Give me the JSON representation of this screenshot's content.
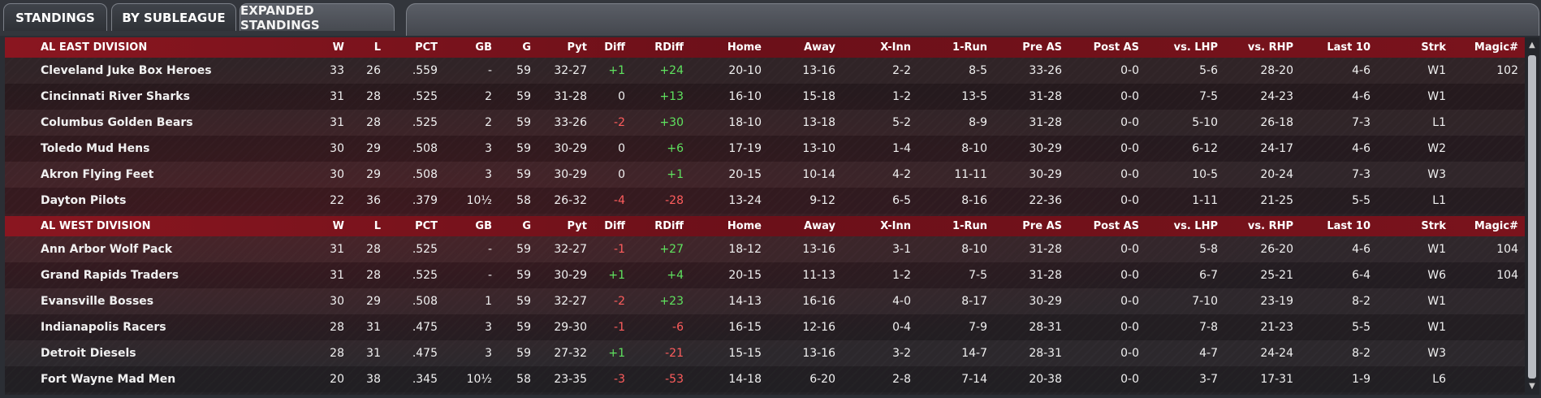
{
  "tabs": [
    "STANDINGS",
    "BY SUBLEAGUE",
    "EXPANDED STANDINGS"
  ],
  "active_tab": "EXPANDED STANDINGS",
  "columns": [
    "W",
    "L",
    "PCT",
    "GB",
    "G",
    "Pyt",
    "Diff",
    "RDiff",
    "Home",
    "Away",
    "X-Inn",
    "1-Run",
    "Pre AS",
    "Post AS",
    "vs. LHP",
    "vs. RHP",
    "Last 10",
    "Strk",
    "Magic#"
  ],
  "colors": {
    "positive": "#5fe35f",
    "negative": "#ff5d5d",
    "header": "#8a1620"
  },
  "divisions": [
    {
      "name": "AL EAST DIVISION",
      "teams": [
        {
          "name": "Cleveland Juke Box Heroes",
          "W": "33",
          "L": "26",
          "PCT": ".559",
          "GB": "-",
          "G": "59",
          "Pyt": "32-27",
          "Diff": "+1",
          "RDiff": "+24",
          "Home": "20-10",
          "Away": "13-16",
          "XInn": "2-2",
          "OneRun": "8-5",
          "PreAS": "33-26",
          "PostAS": "0-0",
          "vsLHP": "5-6",
          "vsRHP": "28-20",
          "Last10": "4-6",
          "Strk": "W1",
          "Magic": "102"
        },
        {
          "name": "Cincinnati River Sharks",
          "W": "31",
          "L": "28",
          "PCT": ".525",
          "GB": "2",
          "G": "59",
          "Pyt": "31-28",
          "Diff": "0",
          "RDiff": "+13",
          "Home": "16-10",
          "Away": "15-18",
          "XInn": "1-2",
          "OneRun": "13-5",
          "PreAS": "31-28",
          "PostAS": "0-0",
          "vsLHP": "7-5",
          "vsRHP": "24-23",
          "Last10": "4-6",
          "Strk": "W1",
          "Magic": ""
        },
        {
          "name": "Columbus Golden Bears",
          "W": "31",
          "L": "28",
          "PCT": ".525",
          "GB": "2",
          "G": "59",
          "Pyt": "33-26",
          "Diff": "-2",
          "RDiff": "+30",
          "Home": "18-10",
          "Away": "13-18",
          "XInn": "5-2",
          "OneRun": "8-9",
          "PreAS": "31-28",
          "PostAS": "0-0",
          "vsLHP": "5-10",
          "vsRHP": "26-18",
          "Last10": "7-3",
          "Strk": "L1",
          "Magic": ""
        },
        {
          "name": "Toledo  Mud Hens",
          "W": "30",
          "L": "29",
          "PCT": ".508",
          "GB": "3",
          "G": "59",
          "Pyt": "30-29",
          "Diff": "0",
          "RDiff": "+6",
          "Home": "17-19",
          "Away": "13-10",
          "XInn": "1-4",
          "OneRun": "8-10",
          "PreAS": "30-29",
          "PostAS": "0-0",
          "vsLHP": "6-12",
          "vsRHP": "24-17",
          "Last10": "4-6",
          "Strk": "W2",
          "Magic": ""
        },
        {
          "name": "Akron  Flying Feet",
          "W": "30",
          "L": "29",
          "PCT": ".508",
          "GB": "3",
          "G": "59",
          "Pyt": "30-29",
          "Diff": "0",
          "RDiff": "+1",
          "Home": "20-15",
          "Away": "10-14",
          "XInn": "4-2",
          "OneRun": "11-11",
          "PreAS": "30-29",
          "PostAS": "0-0",
          "vsLHP": "10-5",
          "vsRHP": "20-24",
          "Last10": "7-3",
          "Strk": "W3",
          "Magic": ""
        },
        {
          "name": "Dayton Pilots",
          "W": "22",
          "L": "36",
          "PCT": ".379",
          "GB": "10½",
          "G": "58",
          "Pyt": "26-32",
          "Diff": "-4",
          "RDiff": "-28",
          "Home": "13-24",
          "Away": "9-12",
          "XInn": "6-5",
          "OneRun": "8-16",
          "PreAS": "22-36",
          "PostAS": "0-0",
          "vsLHP": "1-11",
          "vsRHP": "21-25",
          "Last10": "5-5",
          "Strk": "L1",
          "Magic": ""
        }
      ]
    },
    {
      "name": "AL WEST DIVISION",
      "teams": [
        {
          "name": "Ann Arbor Wolf Pack",
          "W": "31",
          "L": "28",
          "PCT": ".525",
          "GB": "-",
          "G": "59",
          "Pyt": "32-27",
          "Diff": "-1",
          "RDiff": "+27",
          "Home": "18-12",
          "Away": "13-16",
          "XInn": "3-1",
          "OneRun": "8-10",
          "PreAS": "31-28",
          "PostAS": "0-0",
          "vsLHP": "5-8",
          "vsRHP": "26-20",
          "Last10": "4-6",
          "Strk": "W1",
          "Magic": "104"
        },
        {
          "name": "Grand Rapids Traders",
          "W": "31",
          "L": "28",
          "PCT": ".525",
          "GB": "-",
          "G": "59",
          "Pyt": "30-29",
          "Diff": "+1",
          "RDiff": "+4",
          "Home": "20-15",
          "Away": "11-13",
          "XInn": "1-2",
          "OneRun": "7-5",
          "PreAS": "31-28",
          "PostAS": "0-0",
          "vsLHP": "6-7",
          "vsRHP": "25-21",
          "Last10": "6-4",
          "Strk": "W6",
          "Magic": "104"
        },
        {
          "name": "Evansville Bosses",
          "W": "30",
          "L": "29",
          "PCT": ".508",
          "GB": "1",
          "G": "59",
          "Pyt": "32-27",
          "Diff": "-2",
          "RDiff": "+23",
          "Home": "14-13",
          "Away": "16-16",
          "XInn": "4-0",
          "OneRun": "8-17",
          "PreAS": "30-29",
          "PostAS": "0-0",
          "vsLHP": "7-10",
          "vsRHP": "23-19",
          "Last10": "8-2",
          "Strk": "W1",
          "Magic": ""
        },
        {
          "name": "Indianapolis Racers",
          "W": "28",
          "L": "31",
          "PCT": ".475",
          "GB": "3",
          "G": "59",
          "Pyt": "29-30",
          "Diff": "-1",
          "RDiff": "-6",
          "Home": "16-15",
          "Away": "12-16",
          "XInn": "0-4",
          "OneRun": "7-9",
          "PreAS": "28-31",
          "PostAS": "0-0",
          "vsLHP": "7-8",
          "vsRHP": "21-23",
          "Last10": "5-5",
          "Strk": "W1",
          "Magic": ""
        },
        {
          "name": "Detroit Diesels",
          "W": "28",
          "L": "31",
          "PCT": ".475",
          "GB": "3",
          "G": "59",
          "Pyt": "27-32",
          "Diff": "+1",
          "RDiff": "-21",
          "Home": "15-15",
          "Away": "13-16",
          "XInn": "3-2",
          "OneRun": "14-7",
          "PreAS": "28-31",
          "PostAS": "0-0",
          "vsLHP": "4-7",
          "vsRHP": "24-24",
          "Last10": "8-2",
          "Strk": "W3",
          "Magic": ""
        },
        {
          "name": "Fort Wayne Mad Men",
          "W": "20",
          "L": "38",
          "PCT": ".345",
          "GB": "10½",
          "G": "58",
          "Pyt": "23-35",
          "Diff": "-3",
          "RDiff": "-53",
          "Home": "14-18",
          "Away": "6-20",
          "XInn": "2-8",
          "OneRun": "7-14",
          "PreAS": "20-38",
          "PostAS": "0-0",
          "vsLHP": "3-7",
          "vsRHP": "17-31",
          "Last10": "1-9",
          "Strk": "L6",
          "Magic": ""
        }
      ]
    }
  ]
}
